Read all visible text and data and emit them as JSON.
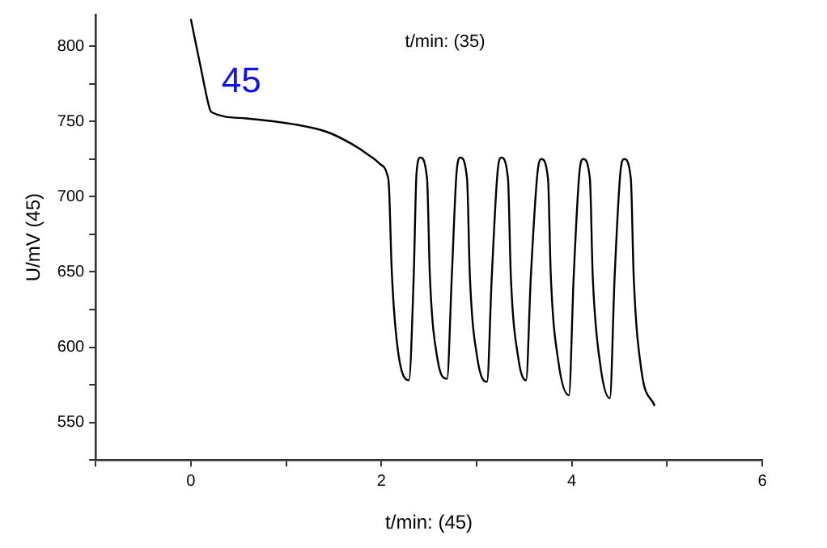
{
  "chart_data": {
    "type": "line",
    "xlabel": "t/min: (45)",
    "ylabel": "U/mV (45)",
    "annotations": [
      "t/min: (35)",
      "45"
    ],
    "xlim": [
      -1,
      6
    ],
    "xticks": [
      {
        "value": -1,
        "label": null
      },
      0,
      {
        "value": 1,
        "label": null
      },
      2,
      {
        "value": 3,
        "label": null
      },
      4,
      {
        "value": 5,
        "label": null
      },
      6
    ],
    "ylim": [
      525,
      821
    ],
    "yticks": [
      {
        "value": 525,
        "label": null
      },
      550,
      {
        "value": 575,
        "label": null
      },
      600,
      {
        "value": 625,
        "label": null
      },
      650,
      {
        "value": 675,
        "label": null
      },
      700,
      {
        "value": 725,
        "label": null
      },
      750,
      {
        "value": 775,
        "label": null
      },
      800
    ],
    "grid": false,
    "legend": false,
    "marker": "none",
    "line_style": "solid",
    "series": [
      {
        "color": "#000000",
        "x": [
          0,
          0.1,
          0.2,
          0.22,
          0.58,
          1.09,
          1.43,
          1.69,
          1.86,
          1.98,
          2.06,
          2.08,
          2.11,
          2.17,
          2.29,
          2.34,
          2.37,
          2.41,
          2.48,
          2.51,
          2.59,
          2.69,
          2.74,
          2.79,
          2.83,
          2.9,
          2.93,
          3.01,
          3.11,
          3.16,
          3.22,
          3.26,
          3.33,
          3.36,
          3.44,
          3.52,
          3.57,
          3.64,
          3.68,
          3.75,
          3.78,
          3.86,
          3.97,
          4.02,
          4.08,
          4.12,
          4.19,
          4.22,
          4.3,
          4.4,
          4.45,
          4.51,
          4.55,
          4.62,
          4.65,
          4.73,
          4.87
        ],
        "values": [
          818,
          787,
          758,
          756,
          752,
          748,
          743,
          735,
          728,
          722,
          715,
          707,
          650,
          600,
          578,
          647,
          716,
          726,
          712,
          647,
          592,
          579,
          647,
          716,
          726,
          712,
          647,
          592,
          577,
          647,
          716,
          726,
          712,
          647,
          592,
          578,
          647,
          716,
          725,
          712,
          647,
          590,
          568,
          647,
          716,
          725,
          712,
          647,
          588,
          566,
          647,
          716,
          725,
          712,
          647,
          585,
          561
        ]
      }
    ]
  }
}
